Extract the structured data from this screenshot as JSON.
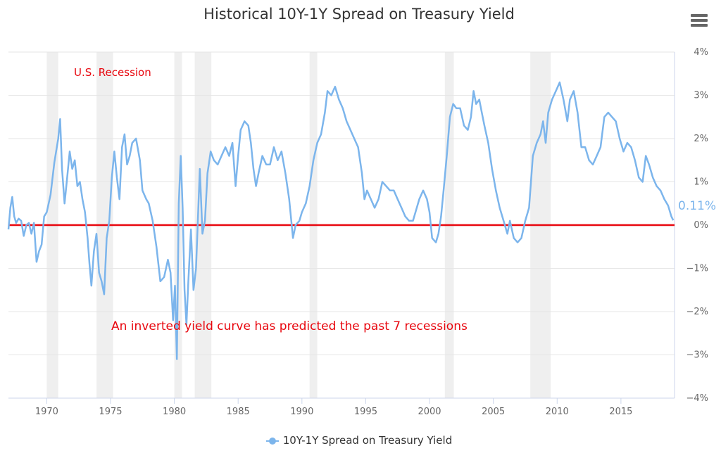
{
  "header": {
    "title": "Historical 10Y-1Y Spread on Treasury Yield",
    "menu_icon": "hamburger-menu-icon"
  },
  "chart_data": {
    "type": "line",
    "title": "Historical 10Y-1Y Spread on Treasury Yield",
    "xlabel": "",
    "ylabel": "",
    "xlim": [
      1967,
      2019.2
    ],
    "ylim": [
      -4,
      4
    ],
    "x_ticks": [
      1970,
      1975,
      1980,
      1985,
      1990,
      1995,
      2000,
      2005,
      2010,
      2015
    ],
    "x_tick_labels": [
      "1970",
      "1975",
      "1980",
      "1985",
      "1990",
      "1995",
      "2000",
      "2005",
      "2010",
      "2015"
    ],
    "y_ticks": [
      4,
      3,
      2,
      1,
      0,
      -1,
      -2,
      -3,
      -4
    ],
    "y_tick_labels": [
      "4%",
      "3%",
      "2%",
      "1%",
      "0%",
      "−1%",
      "−2%",
      "−3%",
      "−4%"
    ],
    "y_axis_side": "right",
    "grid": true,
    "legend": "bottom-center",
    "reference_line": {
      "value": 0,
      "color": "#e8070f"
    },
    "recession_bands": [
      [
        1970.0,
        1970.9
      ],
      [
        1973.9,
        1975.2
      ],
      [
        1980.0,
        1980.6
      ],
      [
        1981.6,
        1982.9
      ],
      [
        1990.6,
        1991.2
      ],
      [
        2001.2,
        2001.9
      ],
      [
        2007.9,
        2009.5
      ]
    ],
    "recession_band_color": "#efefef",
    "annotations": {
      "recession_label": "U.S. Recession",
      "inversion_note": "An inverted yield curve has predicted the past 7 recessions",
      "last_value": "0.11%"
    },
    "annotation_color": "#e8070f",
    "series": [
      {
        "name": "10Y-1Y Spread on Treasury Yield",
        "color": "#7cb5ec",
        "points": [
          [
            1967.0,
            -0.1
          ],
          [
            1967.15,
            0.4
          ],
          [
            1967.3,
            0.65
          ],
          [
            1967.45,
            0.2
          ],
          [
            1967.6,
            0.05
          ],
          [
            1967.8,
            0.15
          ],
          [
            1968.0,
            0.1
          ],
          [
            1968.2,
            -0.25
          ],
          [
            1968.4,
            0.0
          ],
          [
            1968.6,
            0.05
          ],
          [
            1968.8,
            -0.2
          ],
          [
            1969.0,
            0.05
          ],
          [
            1969.2,
            -0.85
          ],
          [
            1969.4,
            -0.6
          ],
          [
            1969.6,
            -0.45
          ],
          [
            1969.8,
            0.2
          ],
          [
            1970.0,
            0.3
          ],
          [
            1970.3,
            0.7
          ],
          [
            1970.6,
            1.45
          ],
          [
            1970.9,
            2.0
          ],
          [
            1971.05,
            2.45
          ],
          [
            1971.2,
            1.3
          ],
          [
            1971.4,
            0.5
          ],
          [
            1971.6,
            1.1
          ],
          [
            1971.8,
            1.7
          ],
          [
            1972.0,
            1.3
          ],
          [
            1972.2,
            1.5
          ],
          [
            1972.4,
            0.9
          ],
          [
            1972.6,
            1.0
          ],
          [
            1972.8,
            0.6
          ],
          [
            1973.0,
            0.3
          ],
          [
            1973.2,
            -0.3
          ],
          [
            1973.35,
            -0.9
          ],
          [
            1973.5,
            -1.4
          ],
          [
            1973.7,
            -0.6
          ],
          [
            1973.9,
            -0.2
          ],
          [
            1974.1,
            -1.1
          ],
          [
            1974.3,
            -1.3
          ],
          [
            1974.5,
            -1.6
          ],
          [
            1974.7,
            -0.3
          ],
          [
            1974.9,
            0.1
          ],
          [
            1975.1,
            1.1
          ],
          [
            1975.3,
            1.7
          ],
          [
            1975.5,
            1.1
          ],
          [
            1975.7,
            0.6
          ],
          [
            1975.9,
            1.8
          ],
          [
            1976.1,
            2.1
          ],
          [
            1976.3,
            1.4
          ],
          [
            1976.5,
            1.6
          ],
          [
            1976.7,
            1.9
          ],
          [
            1977.0,
            2.0
          ],
          [
            1977.3,
            1.5
          ],
          [
            1977.5,
            0.8
          ],
          [
            1977.8,
            0.6
          ],
          [
            1978.0,
            0.5
          ],
          [
            1978.3,
            0.1
          ],
          [
            1978.6,
            -0.5
          ],
          [
            1978.9,
            -1.3
          ],
          [
            1979.2,
            -1.2
          ],
          [
            1979.5,
            -0.8
          ],
          [
            1979.7,
            -1.1
          ],
          [
            1979.9,
            -2.2
          ],
          [
            1980.05,
            -1.4
          ],
          [
            1980.2,
            -3.1
          ],
          [
            1980.35,
            0.5
          ],
          [
            1980.5,
            1.6
          ],
          [
            1980.65,
            0.4
          ],
          [
            1980.8,
            -1.5
          ],
          [
            1980.95,
            -2.3
          ],
          [
            1981.1,
            -1.3
          ],
          [
            1981.3,
            -0.1
          ],
          [
            1981.5,
            -1.5
          ],
          [
            1981.7,
            -1.0
          ],
          [
            1982.0,
            1.3
          ],
          [
            1982.2,
            -0.2
          ],
          [
            1982.4,
            0.1
          ],
          [
            1982.6,
            1.2
          ],
          [
            1982.85,
            1.7
          ],
          [
            1983.1,
            1.5
          ],
          [
            1983.4,
            1.4
          ],
          [
            1983.7,
            1.6
          ],
          [
            1984.0,
            1.8
          ],
          [
            1984.3,
            1.6
          ],
          [
            1984.55,
            1.9
          ],
          [
            1984.8,
            0.9
          ],
          [
            1985.0,
            1.6
          ],
          [
            1985.2,
            2.2
          ],
          [
            1985.5,
            2.4
          ],
          [
            1985.8,
            2.3
          ],
          [
            1986.0,
            1.9
          ],
          [
            1986.2,
            1.3
          ],
          [
            1986.4,
            0.9
          ],
          [
            1986.6,
            1.2
          ],
          [
            1986.9,
            1.6
          ],
          [
            1987.2,
            1.4
          ],
          [
            1987.5,
            1.4
          ],
          [
            1987.8,
            1.8
          ],
          [
            1988.1,
            1.5
          ],
          [
            1988.4,
            1.7
          ],
          [
            1988.7,
            1.2
          ],
          [
            1989.0,
            0.6
          ],
          [
            1989.3,
            -0.3
          ],
          [
            1989.5,
            0.0
          ],
          [
            1989.8,
            0.1
          ],
          [
            1990.0,
            0.3
          ],
          [
            1990.3,
            0.5
          ],
          [
            1990.6,
            0.9
          ],
          [
            1990.9,
            1.5
          ],
          [
            1991.2,
            1.9
          ],
          [
            1991.5,
            2.1
          ],
          [
            1991.8,
            2.6
          ],
          [
            1992.0,
            3.1
          ],
          [
            1992.3,
            3.0
          ],
          [
            1992.6,
            3.2
          ],
          [
            1992.9,
            2.9
          ],
          [
            1993.2,
            2.7
          ],
          [
            1993.5,
            2.4
          ],
          [
            1993.8,
            2.2
          ],
          [
            1994.1,
            2.0
          ],
          [
            1994.4,
            1.8
          ],
          [
            1994.7,
            1.2
          ],
          [
            1994.9,
            0.6
          ],
          [
            1995.1,
            0.8
          ],
          [
            1995.4,
            0.6
          ],
          [
            1995.7,
            0.4
          ],
          [
            1996.0,
            0.6
          ],
          [
            1996.3,
            1.0
          ],
          [
            1996.6,
            0.9
          ],
          [
            1996.9,
            0.8
          ],
          [
            1997.2,
            0.8
          ],
          [
            1997.5,
            0.6
          ],
          [
            1997.8,
            0.4
          ],
          [
            1998.1,
            0.2
          ],
          [
            1998.4,
            0.1
          ],
          [
            1998.7,
            0.1
          ],
          [
            1998.9,
            0.3
          ],
          [
            1999.2,
            0.6
          ],
          [
            1999.5,
            0.8
          ],
          [
            1999.8,
            0.6
          ],
          [
            2000.0,
            0.3
          ],
          [
            2000.2,
            -0.3
          ],
          [
            2000.5,
            -0.4
          ],
          [
            2000.7,
            -0.2
          ],
          [
            2000.9,
            0.2
          ],
          [
            2001.1,
            0.8
          ],
          [
            2001.35,
            1.6
          ],
          [
            2001.6,
            2.5
          ],
          [
            2001.85,
            2.8
          ],
          [
            2002.1,
            2.7
          ],
          [
            2002.4,
            2.7
          ],
          [
            2002.7,
            2.3
          ],
          [
            2003.0,
            2.2
          ],
          [
            2003.25,
            2.5
          ],
          [
            2003.45,
            3.1
          ],
          [
            2003.65,
            2.8
          ],
          [
            2003.9,
            2.9
          ],
          [
            2004.1,
            2.6
          ],
          [
            2004.3,
            2.3
          ],
          [
            2004.6,
            1.9
          ],
          [
            2004.9,
            1.3
          ],
          [
            2005.2,
            0.8
          ],
          [
            2005.5,
            0.4
          ],
          [
            2005.8,
            0.1
          ],
          [
            2006.1,
            -0.2
          ],
          [
            2006.3,
            0.1
          ],
          [
            2006.6,
            -0.3
          ],
          [
            2006.9,
            -0.4
          ],
          [
            2007.2,
            -0.3
          ],
          [
            2007.5,
            0.1
          ],
          [
            2007.8,
            0.4
          ],
          [
            2008.1,
            1.6
          ],
          [
            2008.4,
            1.9
          ],
          [
            2008.7,
            2.1
          ],
          [
            2008.9,
            2.4
          ],
          [
            2009.1,
            1.9
          ],
          [
            2009.3,
            2.6
          ],
          [
            2009.6,
            2.9
          ],
          [
            2009.9,
            3.1
          ],
          [
            2010.2,
            3.3
          ],
          [
            2010.5,
            2.9
          ],
          [
            2010.8,
            2.4
          ],
          [
            2011.0,
            2.9
          ],
          [
            2011.3,
            3.1
          ],
          [
            2011.6,
            2.6
          ],
          [
            2011.9,
            1.8
          ],
          [
            2012.2,
            1.8
          ],
          [
            2012.5,
            1.5
          ],
          [
            2012.8,
            1.4
          ],
          [
            2013.1,
            1.6
          ],
          [
            2013.4,
            1.8
          ],
          [
            2013.7,
            2.5
          ],
          [
            2014.0,
            2.6
          ],
          [
            2014.3,
            2.5
          ],
          [
            2014.6,
            2.4
          ],
          [
            2014.9,
            2.0
          ],
          [
            2015.2,
            1.7
          ],
          [
            2015.5,
            1.9
          ],
          [
            2015.8,
            1.8
          ],
          [
            2016.1,
            1.5
          ],
          [
            2016.4,
            1.1
          ],
          [
            2016.7,
            1.0
          ],
          [
            2016.95,
            1.6
          ],
          [
            2017.2,
            1.4
          ],
          [
            2017.5,
            1.1
          ],
          [
            2017.8,
            0.9
          ],
          [
            2018.1,
            0.8
          ],
          [
            2018.4,
            0.6
          ],
          [
            2018.7,
            0.45
          ],
          [
            2018.95,
            0.2
          ],
          [
            2019.1,
            0.11
          ]
        ]
      }
    ]
  },
  "legend": {
    "label": "10Y-1Y Spread on Treasury Yield"
  }
}
